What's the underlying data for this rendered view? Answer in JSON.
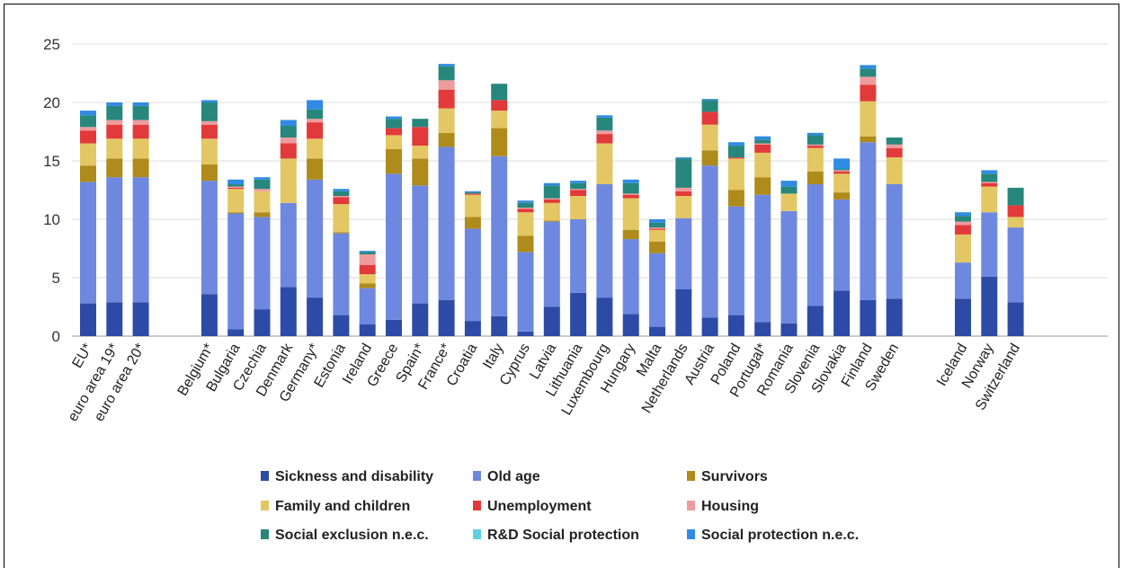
{
  "chart_data": {
    "type": "bar",
    "stacked": true,
    "ylim": [
      0,
      25
    ],
    "yticks": [
      0,
      5,
      10,
      15,
      20,
      25
    ],
    "ytick_labels": [
      "0",
      "5",
      "10",
      "15",
      "20",
      "25"
    ],
    "grid": "horizontal",
    "legend_position": "bottom",
    "groups": [
      [
        "EU*",
        "euro area 19*",
        "euro area 20*"
      ],
      [
        "Belgium*",
        "Bulgaria",
        "Czechia",
        "Denmark",
        "Germany*",
        "Estonia",
        "Ireland",
        "Greece",
        "Spain*",
        "France*",
        "Croatia",
        "Italy",
        "Cyprus",
        "Latvia",
        "Lithuania",
        "Luxembourg",
        "Hungary",
        "Malta",
        "Netherlands",
        "Austria",
        "Poland",
        "Portugal*",
        "Romania",
        "Slovenia",
        "Slovakia",
        "Finland",
        "Sweden"
      ],
      [
        "Iceland",
        "Norway",
        "Switzerland"
      ]
    ],
    "series": [
      {
        "name": "Sickness and disability",
        "color": "#2D4BA6",
        "values": [
          2.8,
          2.9,
          2.9,
          3.6,
          0.6,
          2.3,
          4.2,
          3.3,
          1.8,
          1.0,
          1.4,
          2.8,
          3.1,
          1.3,
          1.7,
          0.4,
          2.5,
          3.7,
          3.3,
          1.9,
          0.8,
          4.0,
          1.6,
          1.8,
          1.2,
          1.1,
          2.6,
          3.9,
          3.1,
          3.2,
          3.2,
          5.1,
          2.9
        ]
      },
      {
        "name": "Old age",
        "color": "#6F88DF",
        "values": [
          10.4,
          10.7,
          10.7,
          9.7,
          9.9,
          7.9,
          7.2,
          10.1,
          7.0,
          3.1,
          12.5,
          10.1,
          13.1,
          7.9,
          13.7,
          6.8,
          7.3,
          6.3,
          9.7,
          6.4,
          6.3,
          6.1,
          13.0,
          9.3,
          10.9,
          9.6,
          10.4,
          7.8,
          13.5,
          9.8,
          3.1,
          5.5,
          6.4
        ]
      },
      {
        "name": "Survivors",
        "color": "#AE8B1B",
        "values": [
          1.4,
          1.6,
          1.6,
          1.4,
          0.1,
          0.4,
          0.0,
          1.8,
          0.1,
          0.4,
          2.1,
          2.3,
          1.2,
          1.0,
          2.4,
          1.4,
          0.1,
          0.0,
          0.0,
          0.8,
          1.0,
          0.0,
          1.3,
          1.4,
          1.5,
          0.0,
          1.1,
          0.6,
          0.5,
          0.0,
          0.0,
          0.0,
          0.0
        ]
      },
      {
        "name": "Family and children",
        "color": "#E3C764",
        "values": [
          1.9,
          1.7,
          1.7,
          2.2,
          2.0,
          1.8,
          3.8,
          1.7,
          2.4,
          0.8,
          1.2,
          1.1,
          2.1,
          1.9,
          1.5,
          2.0,
          1.5,
          2.0,
          3.5,
          2.7,
          1.0,
          1.9,
          2.2,
          2.7,
          2.1,
          1.5,
          2.0,
          1.6,
          3.0,
          2.3,
          2.4,
          2.2,
          0.9
        ]
      },
      {
        "name": "Unemployment",
        "color": "#E23A3A",
        "values": [
          1.1,
          1.2,
          1.2,
          1.2,
          0.1,
          0.0,
          1.3,
          1.4,
          0.6,
          0.8,
          0.6,
          1.6,
          1.6,
          0.1,
          0.9,
          0.3,
          0.3,
          0.5,
          0.8,
          0.3,
          0.1,
          0.4,
          1.1,
          0.1,
          0.7,
          0.0,
          0.2,
          0.2,
          1.4,
          0.8,
          0.8,
          0.3,
          1.0
        ]
      },
      {
        "name": "Housing",
        "color": "#EE9B9E",
        "values": [
          0.3,
          0.4,
          0.4,
          0.3,
          0.1,
          0.2,
          0.5,
          0.3,
          0.1,
          0.9,
          0.0,
          0.0,
          0.8,
          0.0,
          0.0,
          0.1,
          0.1,
          0.1,
          0.3,
          0.1,
          0.1,
          0.3,
          0.0,
          0.0,
          0.1,
          0.0,
          0.1,
          0.1,
          0.7,
          0.3,
          0.3,
          0.1,
          0.0
        ]
      },
      {
        "name": "Social exclusion n.e.c.",
        "color": "#27877C",
        "values": [
          1.0,
          1.2,
          1.2,
          1.6,
          0.2,
          0.8,
          1.0,
          0.8,
          0.4,
          0.2,
          0.8,
          0.7,
          1.2,
          0.1,
          1.4,
          0.4,
          1.1,
          0.5,
          1.1,
          0.9,
          0.4,
          2.5,
          1.0,
          1.0,
          0.3,
          0.6,
          0.8,
          0.1,
          0.7,
          0.6,
          0.5,
          0.7,
          1.5
        ]
      },
      {
        "name": "R&D Social protection",
        "color": "#5CD1E3",
        "values": [
          0.0,
          0.0,
          0.0,
          0.0,
          0.0,
          0.0,
          0.0,
          0.0,
          0.0,
          0.0,
          0.0,
          0.0,
          0.0,
          0.0,
          0.0,
          0.0,
          0.0,
          0.0,
          0.0,
          0.0,
          0.0,
          0.0,
          0.0,
          0.0,
          0.0,
          0.0,
          0.0,
          0.0,
          0.0,
          0.0,
          0.0,
          0.0,
          0.0
        ]
      },
      {
        "name": "Social protection n.e.c.",
        "color": "#2F8BE3",
        "values": [
          0.4,
          0.3,
          0.3,
          0.2,
          0.4,
          0.2,
          0.5,
          0.8,
          0.2,
          0.1,
          0.2,
          0.0,
          0.2,
          0.1,
          0.0,
          0.2,
          0.2,
          0.2,
          0.2,
          0.3,
          0.3,
          0.1,
          0.1,
          0.3,
          0.3,
          0.5,
          0.2,
          0.9,
          0.3,
          0.0,
          0.3,
          0.3,
          0.0
        ]
      }
    ]
  }
}
